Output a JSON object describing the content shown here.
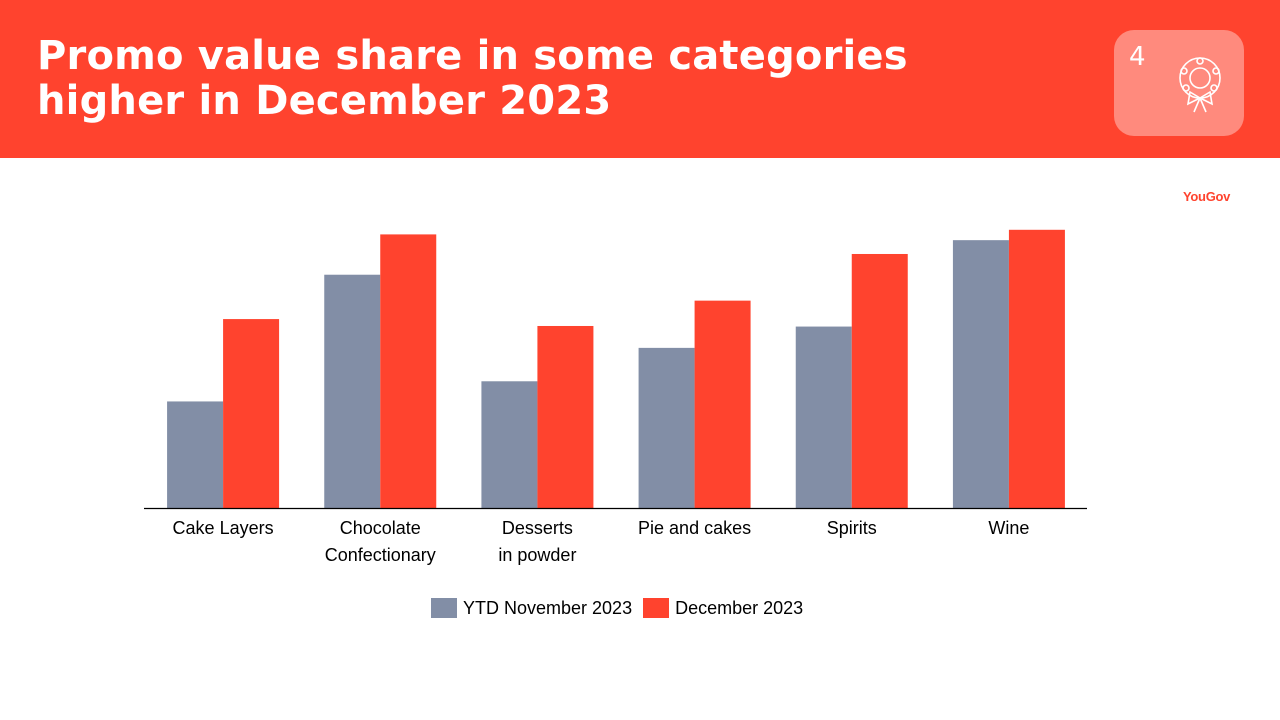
{
  "header": {
    "title_line1": "Promo value share in some categories",
    "title_line2": "higher in December 2023",
    "slide_number": "4",
    "badge_icon": "wreath-icon"
  },
  "brand": {
    "logo_text": "YouGov"
  },
  "colors": {
    "header_bg": "#ff432e",
    "series_ytd": "#828ea6",
    "series_dec": "#ff432e",
    "axis": "#000000"
  },
  "chart_data": {
    "type": "bar",
    "title": "",
    "xlabel": "",
    "ylabel": "",
    "ylim": [
      0,
      50
    ],
    "grid": false,
    "legend_position": "bottom",
    "categories": [
      "Cake Layers",
      "Chocolate\nConfectionary",
      "Desserts\nin powder",
      "Pie and cakes",
      "Spirits",
      "Wine"
    ],
    "series": [
      {
        "name": "YTD November 2023",
        "values": [
          18.5,
          40.5,
          22,
          27.8,
          31.5,
          46.5
        ]
      },
      {
        "name": "December 2023",
        "values": [
          32.8,
          47.5,
          31.6,
          36,
          44.1,
          48.3
        ]
      }
    ]
  }
}
